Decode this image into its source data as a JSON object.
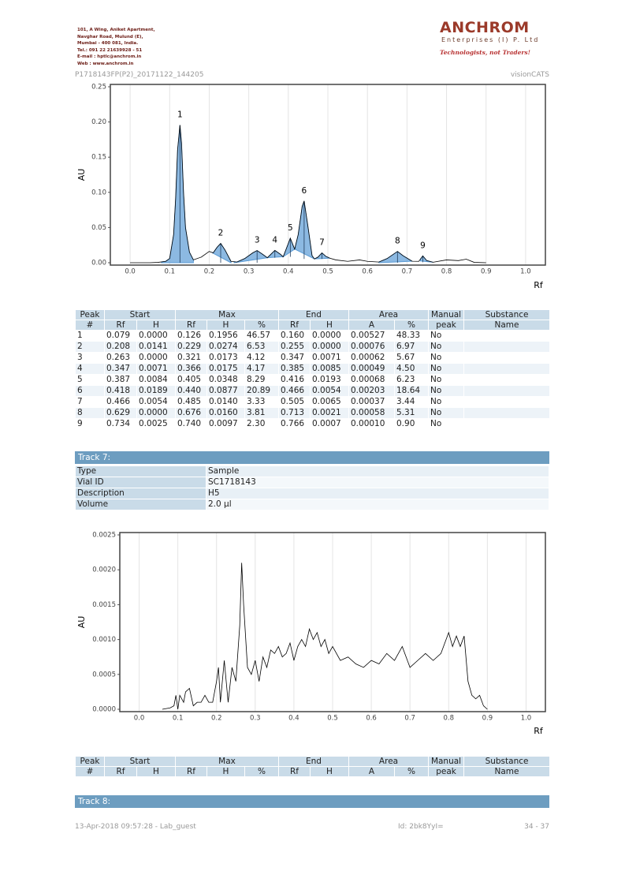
{
  "header": {
    "address": [
      "101, A Wing, Aniket Apartment,",
      "Navghar Road, Mulund (E),",
      "Mumbai - 400 081, India.",
      "Tel.: 091 22 21639928 - 51",
      "E-mail : hptlc@anchrom.in",
      "Web : www.anchrom.in"
    ],
    "company": "ANCHROM",
    "company_sub": "Enterprises (I) P. Ltd",
    "tagline": "Technologists, not Traders!"
  },
  "file_id": "P1718143FP(P2)_20171122_144205",
  "software": "visionCATS",
  "charts": [
    {
      "y_label": "AU",
      "x_label": "Rf",
      "xlim": [
        -0.05,
        1.05
      ],
      "ylim": [
        0,
        0.25
      ],
      "xticks": [
        {
          "value": 0,
          "label": "0.0"
        },
        {
          "value": 0.1,
          "label": "0.1"
        },
        {
          "value": 0.2,
          "label": "0.2"
        },
        {
          "value": 0.3,
          "label": "0.3"
        },
        {
          "value": 0.4,
          "label": "0.4"
        },
        {
          "value": 0.5,
          "label": "0.5"
        },
        {
          "value": 0.6,
          "label": "0.6"
        },
        {
          "value": 0.7,
          "label": "0.7"
        },
        {
          "value": 0.8,
          "label": "0.8"
        },
        {
          "value": 0.9,
          "label": "0.9"
        },
        {
          "value": 1,
          "label": "1.0"
        }
      ],
      "yticks": [
        {
          "value": 0,
          "label": "0.00"
        },
        {
          "value": 0.05,
          "label": "0.05"
        },
        {
          "value": 0.1,
          "label": "0.10"
        },
        {
          "value": 0.15,
          "label": "0.15"
        },
        {
          "value": 0.2,
          "label": "0.20"
        },
        {
          "value": 0.25,
          "label": "0.25"
        }
      ],
      "x": [
        0,
        0.05,
        0.07,
        0.09,
        0.1,
        0.11,
        0.115,
        0.12,
        0.126,
        0.13,
        0.135,
        0.14,
        0.15,
        0.16,
        0.18,
        0.2,
        0.21,
        0.22,
        0.229,
        0.24,
        0.255,
        0.27,
        0.29,
        0.31,
        0.321,
        0.335,
        0.347,
        0.366,
        0.38,
        0.387,
        0.395,
        0.405,
        0.416,
        0.425,
        0.435,
        0.44,
        0.45,
        0.46,
        0.466,
        0.475,
        0.485,
        0.495,
        0.505,
        0.52,
        0.55,
        0.58,
        0.6,
        0.629,
        0.65,
        0.676,
        0.69,
        0.713,
        0.73,
        0.74,
        0.75,
        0.766,
        0.8,
        0.83,
        0.85,
        0.87,
        0.9
      ],
      "values": [
        0,
        0,
        0.0005,
        0.002,
        0.006,
        0.04,
        0.09,
        0.16,
        0.1956,
        0.17,
        0.1,
        0.05,
        0.015,
        0.004,
        0.008,
        0.016,
        0.014,
        0.022,
        0.0274,
        0.018,
        0.002,
        0.001,
        0.006,
        0.014,
        0.0173,
        0.012,
        0.0071,
        0.0175,
        0.012,
        0.0084,
        0.02,
        0.0348,
        0.0193,
        0.04,
        0.08,
        0.0877,
        0.05,
        0.01,
        0.0054,
        0.008,
        0.014,
        0.009,
        0.0065,
        0.004,
        0.002,
        0.004,
        0.002,
        0.001,
        0.006,
        0.016,
        0.01,
        0.0021,
        0.002,
        0.0097,
        0.003,
        0.0007,
        0.004,
        0.003,
        0.005,
        0.0005,
        0
      ],
      "color": "#000000",
      "peak_fill": "#5b9bd5",
      "grid": true
    },
    {
      "y_label": "AU",
      "x_label": "Rf",
      "xlim": [
        -0.05,
        1.05
      ],
      "ylim": [
        0,
        0.0025
      ],
      "xticks": [
        {
          "value": 0,
          "label": "0.0"
        },
        {
          "value": 0.1,
          "label": "0.1"
        },
        {
          "value": 0.2,
          "label": "0.2"
        },
        {
          "value": 0.3,
          "label": "0.3"
        },
        {
          "value": 0.4,
          "label": "0.4"
        },
        {
          "value": 0.5,
          "label": "0.5"
        },
        {
          "value": 0.6,
          "label": "0.6"
        },
        {
          "value": 0.7,
          "label": "0.7"
        },
        {
          "value": 0.8,
          "label": "0.8"
        },
        {
          "value": 0.9,
          "label": "0.9"
        },
        {
          "value": 1,
          "label": "1.0"
        }
      ],
      "yticks": [
        {
          "value": 0,
          "label": "0.0000"
        },
        {
          "value": 0.0005,
          "label": "0.0005"
        },
        {
          "value": 0.001,
          "label": "0.0010"
        },
        {
          "value": 0.0015,
          "label": "0.0015"
        },
        {
          "value": 0.002,
          "label": "0.0020"
        },
        {
          "value": 0.0025,
          "label": "0.0025"
        }
      ],
      "x": [
        0.06,
        0.08,
        0.09,
        0.095,
        0.1,
        0.105,
        0.11,
        0.115,
        0.12,
        0.13,
        0.14,
        0.15,
        0.16,
        0.17,
        0.18,
        0.19,
        0.2,
        0.205,
        0.21,
        0.22,
        0.23,
        0.24,
        0.25,
        0.26,
        0.265,
        0.27,
        0.28,
        0.29,
        0.3,
        0.31,
        0.32,
        0.33,
        0.34,
        0.35,
        0.36,
        0.37,
        0.38,
        0.39,
        0.4,
        0.41,
        0.42,
        0.43,
        0.44,
        0.45,
        0.46,
        0.47,
        0.48,
        0.49,
        0.5,
        0.52,
        0.54,
        0.56,
        0.58,
        0.6,
        0.62,
        0.64,
        0.66,
        0.68,
        0.7,
        0.72,
        0.74,
        0.76,
        0.78,
        0.8,
        0.81,
        0.82,
        0.83,
        0.84,
        0.85,
        0.86,
        0.87,
        0.88,
        0.89,
        0.9
      ],
      "values": [
        0,
        2e-05,
        5e-05,
        0.0002,
        0,
        0.0002,
        0.00015,
        0.0001,
        0.00025,
        0.0003,
        5e-05,
        0.0001,
        0.0001,
        0.0002,
        0.0001,
        0.0001,
        0.0004,
        0.0006,
        0.0001,
        0.0007,
        0.0001,
        0.0006,
        0.0004,
        0.0012,
        0.0021,
        0.0015,
        0.0006,
        0.0005,
        0.0007,
        0.0004,
        0.00075,
        0.0006,
        0.00085,
        0.0008,
        0.0009,
        0.00075,
        0.0008,
        0.00095,
        0.0007,
        0.0009,
        0.001,
        0.0009,
        0.00115,
        0.001,
        0.0011,
        0.0009,
        0.001,
        0.0008,
        0.0009,
        0.0007,
        0.00075,
        0.00065,
        0.0006,
        0.0007,
        0.00065,
        0.0008,
        0.0007,
        0.0009,
        0.0006,
        0.0007,
        0.0008,
        0.0007,
        0.0008,
        0.0011,
        0.0009,
        0.00105,
        0.0009,
        0.00105,
        0.0004,
        0.0002,
        0.00015,
        0.0002,
        5e-05,
        0
      ],
      "color": "#000000",
      "grid": true
    }
  ],
  "tables": [
    {
      "header": [
        [
          "Peak",
          "Start",
          "Max",
          "End",
          "Area",
          "Manual",
          "Substance"
        ],
        [
          "#",
          "Rf",
          "H",
          "Rf",
          "H",
          "%",
          "Rf",
          "H",
          "A",
          "%",
          "peak",
          "Name"
        ]
      ],
      "rows": [
        [
          "1",
          "0.079",
          "0.0000",
          "0.126",
          "0.1956",
          "46.57",
          "0.160",
          "0.0000",
          "0.00527",
          "48.33",
          "No"
        ],
        [
          "2",
          "0.208",
          "0.0141",
          "0.229",
          "0.0274",
          "6.53",
          "0.255",
          "0.0000",
          "0.00076",
          "6.97",
          "No"
        ],
        [
          "3",
          "0.263",
          "0.0000",
          "0.321",
          "0.0173",
          "4.12",
          "0.347",
          "0.0071",
          "0.00062",
          "5.67",
          "No"
        ],
        [
          "4",
          "0.347",
          "0.0071",
          "0.366",
          "0.0175",
          "4.17",
          "0.385",
          "0.0085",
          "0.00049",
          "4.50",
          "No"
        ],
        [
          "5",
          "0.387",
          "0.0084",
          "0.405",
          "0.0348",
          "8.29",
          "0.416",
          "0.0193",
          "0.00068",
          "6.23",
          "No"
        ],
        [
          "6",
          "0.418",
          "0.0189",
          "0.440",
          "0.0877",
          "20.89",
          "0.466",
          "0.0054",
          "0.00203",
          "18.64",
          "No"
        ],
        [
          "7",
          "0.466",
          "0.0054",
          "0.485",
          "0.0140",
          "3.33",
          "0.505",
          "0.0065",
          "0.00037",
          "3.44",
          "No"
        ],
        [
          "8",
          "0.629",
          "0.0000",
          "0.676",
          "0.0160",
          "3.81",
          "0.713",
          "0.0021",
          "0.00058",
          "5.31",
          "No"
        ],
        [
          "9",
          "0.734",
          "0.0025",
          "0.740",
          "0.0097",
          "2.30",
          "0.766",
          "0.0007",
          "0.00010",
          "0.90",
          "No"
        ]
      ]
    },
    {
      "header": [
        [
          "Peak",
          "Start",
          "Max",
          "End",
          "Area",
          "Manual",
          "Substance"
        ],
        [
          "#",
          "Rf",
          "H",
          "Rf",
          "H",
          "%",
          "Rf",
          "H",
          "A",
          "%",
          "peak",
          "Name"
        ]
      ],
      "rows": []
    }
  ],
  "track7": {
    "title": "Track 7:",
    "rows": [
      [
        "Type",
        "Sample"
      ],
      [
        "Vial ID",
        "SC1718143"
      ],
      [
        "Description",
        "H5"
      ],
      [
        "Volume",
        "2.0 µl"
      ]
    ]
  },
  "track8": {
    "title": "Track 8:"
  },
  "footer": {
    "printed": "13-Apr-2018 09:57:28 - Lab_guest",
    "id": "Id: 2bk8YyI=",
    "page": "34 - 37"
  }
}
